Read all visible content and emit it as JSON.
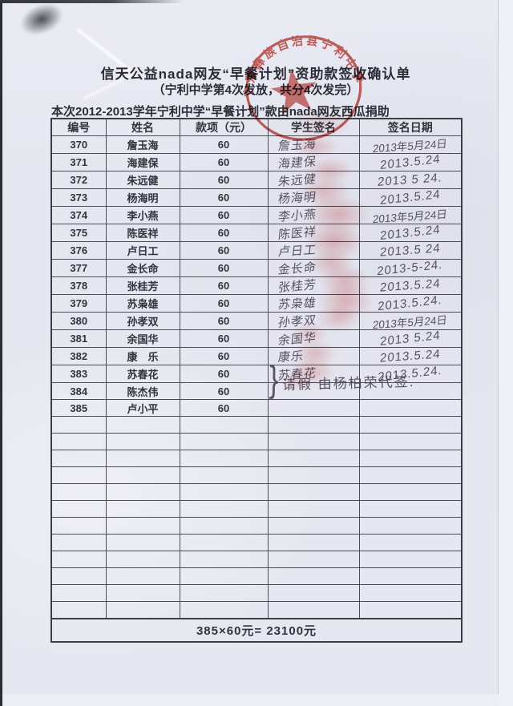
{
  "colors": {
    "paper": "#e6e7f0",
    "seal_red": "#c5413a",
    "ink": "#4c4656",
    "print_text": "#2c2c36"
  },
  "header": {
    "title": "信天公益nada网友“早餐计划”资助款签收确认单",
    "subtitle": "（宁利中学第4次发放，共分4次发完）",
    "intro": "本次2012-2013学年宁利中学“早餐计划”款由nada网友西瓜捐助"
  },
  "stamp": {
    "ring_text": "宁蒗彝族自治县宁利中学",
    "icon": "star-icon"
  },
  "table": {
    "columns": [
      "编号",
      "姓名",
      "款项（元）",
      "学生签名",
      "签名日期"
    ],
    "rows": [
      {
        "id": "370",
        "name": "詹玉海",
        "amount": "60",
        "signature": "詹玉海",
        "date": "2013年5月24日"
      },
      {
        "id": "371",
        "name": "海建保",
        "amount": "60",
        "signature": "海建保",
        "date": "2013.5.24"
      },
      {
        "id": "372",
        "name": "朱远健",
        "amount": "60",
        "signature": "朱远健",
        "date": "2013 5 24."
      },
      {
        "id": "373",
        "name": "杨海明",
        "amount": "60",
        "signature": "杨海明",
        "date": "2013.5.24"
      },
      {
        "id": "374",
        "name": "李小燕",
        "amount": "60",
        "signature": "李小燕",
        "date": "2013年5月24日"
      },
      {
        "id": "375",
        "name": "陈医祥",
        "amount": "60",
        "signature": "陈医祥",
        "date": "2013.5.24"
      },
      {
        "id": "376",
        "name": "卢日工",
        "amount": "60",
        "signature": "卢日工",
        "date": "2013.5 24"
      },
      {
        "id": "377",
        "name": "金长命",
        "amount": "60",
        "signature": "金长命",
        "date": "2013-5-24."
      },
      {
        "id": "378",
        "name": "张桂芳",
        "amount": "60",
        "signature": "张桂芳",
        "date": "2013.5.24"
      },
      {
        "id": "379",
        "name": "苏枭雄",
        "amount": "60",
        "signature": "苏枭雄",
        "date": "2013.5.24."
      },
      {
        "id": "380",
        "name": "孙孝双",
        "amount": "60",
        "signature": "孙孝双",
        "date": "2013年5月24日"
      },
      {
        "id": "381",
        "name": "余国华",
        "amount": "60",
        "signature": "余国华",
        "date": "2013 5.24"
      },
      {
        "id": "382",
        "name": "康　乐",
        "amount": "60",
        "signature": "康乐",
        "date": "2013.5.24"
      },
      {
        "id": "383",
        "name": "苏春花",
        "amount": "60",
        "signature": "苏春花",
        "date": "2013.5.24."
      },
      {
        "id": "384",
        "name": "陈杰伟",
        "amount": "60",
        "signature": "",
        "date": ""
      },
      {
        "id": "385",
        "name": "卢小平",
        "amount": "60",
        "signature": "",
        "date": ""
      }
    ],
    "empty_row_count": 12,
    "total": "385×60元= 23100元"
  },
  "absent_note": {
    "brace": "}",
    "text": "请假 由杨柏荣代签."
  }
}
